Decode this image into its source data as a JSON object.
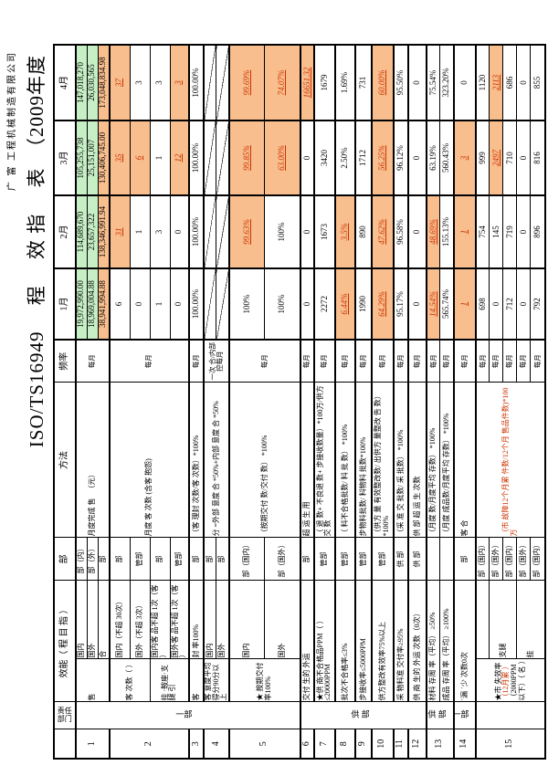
{
  "page": {
    "company": "广 富  工程机械制造有限公司",
    "title": "ISO/TS16949　 程　 效 指 　表　（2009年度"
  },
  "table": {
    "headers": {
      "seq": "",
      "resp_dept": "责任部门",
      "kpi": "效能（ 程 目 指 ）",
      "dept": "部",
      "method": "方法",
      "freq": "频率",
      "months": [
        "1月",
        "2月",
        "3月",
        "4月"
      ]
    },
    "colors": {
      "green": "#c6efc6",
      "orange": "#f9be8e",
      "red_value": "#cc3300"
    },
    "legend_styles": {
      "g": "green-bg",
      "o": "orange-bg",
      "or": "orange-bg red underlined italic",
      "d": "diagonal not-evaluated"
    },
    "rows": [
      {
        "no": "1",
        "group": "一部",
        "group_rows": 12,
        "subs": [
          {
            "desc": " 售 ",
            "desc_rows": 3,
            "sub": "国内",
            "dept": "部（内）",
            "method": "月度完成 售 　（元）",
            "method_rows": 3,
            "freq": "每月",
            "freq_rows": 3,
            "vals": [
              "19,972,990.00|g",
              "114,689,670|g",
              "105,255,738|g",
              "147,018,270|g"
            ]
          },
          {
            "sub": "国外",
            "dept": "部（外）",
            "vals": [
              "18,969,004.88|g",
              "23,657,322|g",
              "25,151,007|g",
              "26,030,565|g"
            ]
          },
          {
            "sub": "合",
            "dept": "部",
            "vals": [
              "38,941,994.88|o",
              "138,346,991.94|o",
              "130,406,745.00|o",
              "173,048,834.98|o"
            ]
          }
        ]
      },
      {
        "no": "2",
        "subs": [
          {
            "desc": "客 次数（ ）",
            "desc_rows": 2,
            "sub": "国内（不超 30次）",
            "dept": "部",
            "method": "月度 客 次数 (含客 抱怨)",
            "method_rows": 4,
            "freq": "每月",
            "freq_rows": 4,
            "vals": [
              "6",
              "31|or",
              "35|or",
              "37|or"
            ]
          },
          {
            "sub": "国外（不超 3次）",
            "dept": "管部",
            "vals": [
              "0",
              "1",
              "6|or",
              "3"
            ]
          },
          {
            "desc": "挂 ·鞍座·支腿 引",
            "desc_rows": 2,
            "sub": "国内客 品不超 1次（客 ）",
            "dept": "部",
            "vals": [
              "1",
              "3",
              "1",
              "3"
            ]
          },
          {
            "sub": "国外客 品不超 1次（客 ）",
            "dept": "管部",
            "vals": [
              "0",
              "0",
              "12|or",
              "3|or"
            ]
          }
        ]
      },
      {
        "no": "3",
        "subs": [
          {
            "desc": "客 ",
            "sub": "封 率100%",
            "dept": "部",
            "method": "（客 理封 次数/客 次数）*100%",
            "freq": "每月",
            "vals": [
              "100.00%",
              "100.00%",
              "100.00%",
              "100.00%"
            ]
          }
        ]
      },
      {
        "no": "4",
        "subs": [
          {
            "desc": "客 意度平均得分90分以上",
            "desc_rows": 2,
            "sub": "国内",
            "dept": "部",
            "method": "分 =外部 意度 合 *50%+内部 意度 合 *50%",
            "method_rows": 2,
            "freq": "一次 合/内部 控每月",
            "freq_rows": 2,
            "vals": [
              "|d",
              "|d",
              "|d",
              "|d"
            ]
          },
          {
            "sub": "国外",
            "dept": "部",
            "vals": [
              "|d",
              "|d",
              "|d",
              "|d"
            ]
          }
        ]
      },
      {
        "no": "5",
        "subs": [
          {
            "desc": "★ 按期交付率100%",
            "desc_rows": 2,
            "sub": "国内",
            "dept": "部（国内）",
            "method": "（按期交付 数/交付 数） *100%",
            "method_rows": 2,
            "freq": "每月",
            "freq_rows": 2,
            "vals": [
              "100%",
              "99.63%|or",
              "99.85%|or",
              "99.69%|or"
            ]
          },
          {
            "sub": "国外",
            "dept": "部（国外）",
            "vals": [
              "100%",
              "100%",
              "63.00%|or",
              "74.07%|or"
            ]
          }
        ]
      },
      {
        "no": "6",
        "group": "供 部",
        "group_rows": 7,
        "subs": [
          {
            "desc": "交付 生的 外运 ",
            "desc_cols": 2,
            "dept": "部",
            "method": "超 运 生 用",
            "freq": "每月",
            "vals": [
              "0",
              "0",
              "0",
              "16651.32|or"
            ]
          }
        ]
      },
      {
        "no": "7",
        "subs": [
          {
            "desc": "★供 商不合格品PPM（ ）≤20000PPM",
            "desc_cols": 2,
            "dept": "管部",
            "method": "（ 退 数+ 不良退 数+ 步接收数量）*100万/供方交 数",
            "freq": "每月",
            "vals": [
              "2272",
              "1673",
              "3420",
              "1679"
            ]
          }
        ]
      },
      {
        "no": "8",
        "subs": [
          {
            "desc": "批次不合格率≤3%",
            "desc_cols": 2,
            "dept": "管部",
            "method": "（ 料不合格批数/ 料 批 数） *100%",
            "freq": "每月",
            "vals": [
              "6.44%|or",
              "3.5%|or",
              "2.50%",
              "1.69%"
            ]
          }
        ]
      },
      {
        "no": "9",
        "subs": [
          {
            "desc": " 步接收率≤5000PPM",
            "desc_cols": 2,
            "dept": "管部",
            "method": " 步物料批数/ 料物料 批数*100%",
            "freq": "每月",
            "vals": [
              "1990",
              "890",
              "1712",
              "731"
            ]
          }
        ]
      },
      {
        "no": "10",
        "subs": [
          {
            "desc": "供方整改有效率75%以上",
            "desc_cols": 2,
            "dept": "管部",
            "method": "（供方 量 有效整改数/ 出供方 量整改 告 数） *100%",
            "freq": "每月",
            "vals": [
              "64.29%|or",
              "47.62%|or",
              "56.25%|or",
              "60.00%|or"
            ]
          }
        ]
      },
      {
        "no": "11",
        "subs": [
          {
            "desc": "采 物料准 交付率≥95%",
            "desc_cols": 2,
            "dept": "供 部",
            "method": "（采 准 交 批数/ 采 批数） *100%",
            "freq": "每月",
            "vals": [
              "95.17%",
              "96.58%",
              "96.12%",
              "95.50%"
            ]
          }
        ]
      },
      {
        "no": "12",
        "subs": [
          {
            "desc": "供 商 生的 外运 次数（0次）",
            "desc_cols": 2,
            "dept": "供 部",
            "method": "供 部 超 运 生 次数",
            "freq": "每月",
            "vals": [
              "0",
              "0",
              "0",
              "0"
            ]
          }
        ]
      },
      {
        "no": "13",
        "group": "供 部",
        "group_rows": 2,
        "subs": [
          {
            "desc": "材料 存周 率（平均） ≥50%",
            "desc_cols": 2,
            "dept": "",
            "method": "（月度 数/月度平均 存数） *100%",
            "freq": "每月",
            "vals": [
              "14.54%|or",
              "48.69%|or",
              "63.19%",
              "75.54%"
            ]
          },
          {
            "desc": "成品 存周 率（平均） ≥100%",
            "desc_cols": 2,
            "dept": "",
            "method": "（月度 成品数/月度平均 存数） *100%",
            "freq": "每月",
            "vals": [
              "565.74%",
              "155.13%",
              "560.43%",
              "323.20%"
            ]
          }
        ]
      },
      {
        "no": "14",
        "group": "一部",
        "group_rows": 1,
        "subs": [
          {
            "desc": "`漏 `少 次数0次",
            "desc_cols": 2,
            "dept": "部",
            "method": "客 合",
            "freq": "每月",
            "vals": [
              "1|or",
              "1|or",
              "3|or",
              "0"
            ]
          }
        ]
      },
      {
        "no": "15",
        "group": "",
        "group_rows": 5,
        "subs": [
          {
            "desc": "★市 失效率（12月累 ）（2000PPM以下）（ 名 ）",
            "desc_red": "（12月累 ）",
            "desc_rows": 5,
            "sub": "",
            "dept": "部（国内）",
            "method": "（市 故障12个月累 件数/12个月 售品件数)*100万",
            "method_rows": 5,
            "method_red": true,
            "freq": "每月",
            "vals": [
              "698",
              "754",
              "999",
              "1120"
            ]
          },
          {
            "sub": "支腿",
            "sub_rows": 2,
            "dept": "部（国外）",
            "freq": "每月",
            "vals": [
              "0",
              "145",
              "2497|or",
              "2113|or"
            ]
          },
          {
            "dept": "部（国内）",
            "freq": "每月",
            "vals": [
              "712",
              "719",
              "710",
              "686"
            ]
          },
          {
            "sub": "挂 ",
            "sub_rows": 2,
            "dept": "部（国外）",
            "freq": "每月",
            "vals": [
              "0",
              "0",
              "0",
              "0"
            ]
          },
          {
            "dept": "部（国内）",
            "freq": "每月",
            "vals": [
              "792",
              "896",
              "816",
              "855"
            ]
          }
        ]
      }
    ]
  }
}
